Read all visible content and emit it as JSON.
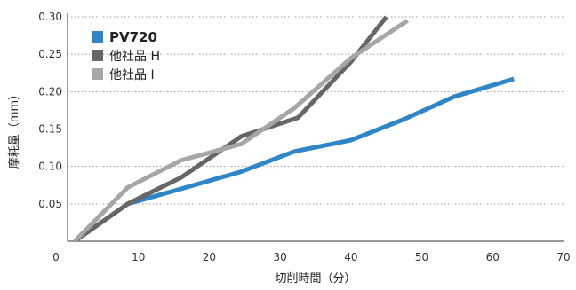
{
  "chart_data": {
    "type": "line",
    "xlabel": "切削時間（分）",
    "ylabel": "摩耗量（mm）",
    "xlim": [
      0,
      70
    ],
    "ylim": [
      0,
      0.3
    ],
    "xticks": [
      "0",
      "10",
      "20",
      "30",
      "40",
      "50",
      "60",
      "70"
    ],
    "yticks": [
      "0.05",
      "0.10",
      "0.15",
      "0.20",
      "0.25",
      "0.30"
    ],
    "grid": "horizontal dotted",
    "legend_position": "top-left",
    "series": [
      {
        "name": "PV720",
        "color": "#2e86c8",
        "bold_label": true,
        "x": [
          1,
          8.5,
          16,
          24.5,
          32,
          40,
          47.5,
          54.5,
          63
        ],
        "y": [
          0.0,
          0.05,
          0.07,
          0.093,
          0.12,
          0.135,
          0.163,
          0.193,
          0.217
        ]
      },
      {
        "name": "他社品 H",
        "color": "#666666",
        "bold_label": false,
        "x": [
          1,
          8.5,
          16,
          24.5,
          32.5,
          40,
          45
        ],
        "y": [
          0.0,
          0.05,
          0.085,
          0.14,
          0.165,
          0.24,
          0.3
        ]
      },
      {
        "name": "他社品 I",
        "color": "#a6a6a6",
        "bold_label": false,
        "x": [
          1,
          8.5,
          16,
          24.5,
          32,
          40,
          48
        ],
        "y": [
          0.0,
          0.072,
          0.108,
          0.13,
          0.178,
          0.245,
          0.295
        ]
      }
    ]
  }
}
